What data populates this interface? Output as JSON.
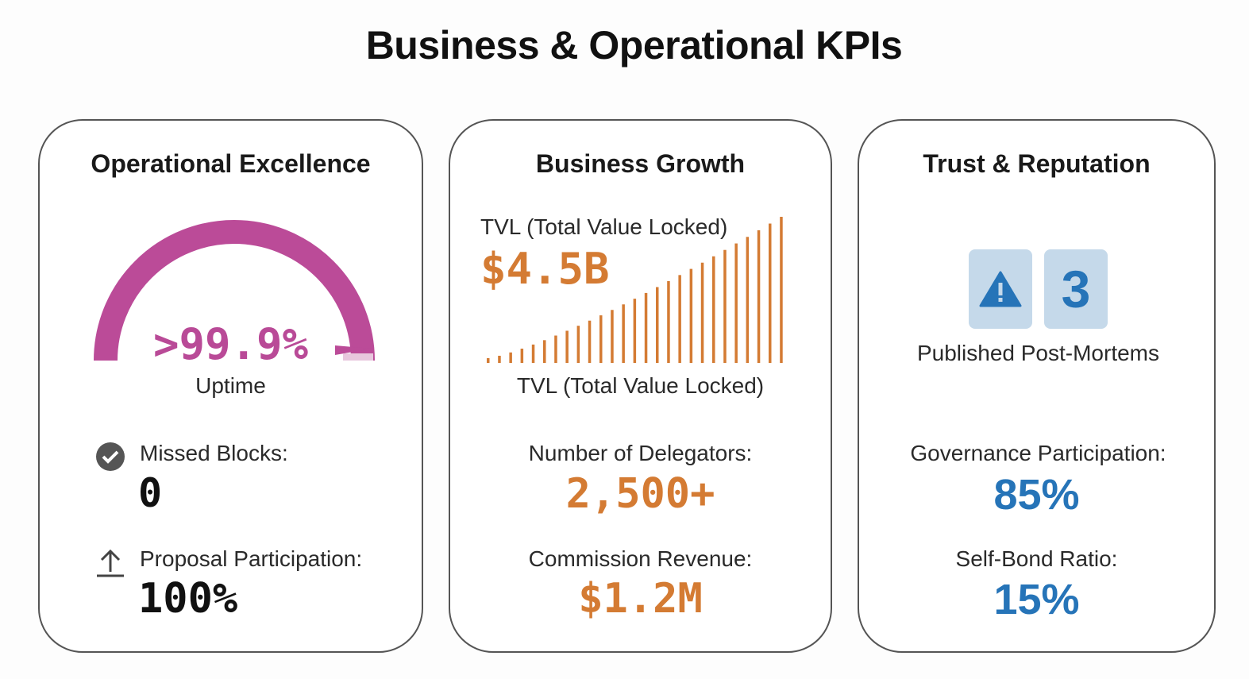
{
  "title": "Business & Operational KPIs",
  "colors": {
    "magenta": "#b94a97",
    "orange": "#d47b33",
    "blue": "#2674b8",
    "tile": "#c5d9ea"
  },
  "operational": {
    "heading": "Operational Excellence",
    "uptime_value": ">99.9%",
    "uptime_label": "Uptime",
    "uptime_gauge_fraction": 0.999,
    "missed_blocks_label": "Missed Blocks:",
    "missed_blocks_value": "0",
    "missed_blocks_icon": "check-circle-icon",
    "proposal_label": "Proposal Participation:",
    "proposal_value": "100%",
    "proposal_icon": "upload-arrow-icon"
  },
  "growth": {
    "heading": "Business Growth",
    "tvl_label_top": "TVL (Total Value Locked)",
    "tvl_value": "$4.5B",
    "tvl_label_bottom": "TVL (Total Value Locked)",
    "delegators_label": "Number of Delegators:",
    "delegators_value": "2,500+",
    "revenue_label": "Commission Revenue:",
    "revenue_value": "$1.2M"
  },
  "trust": {
    "heading": "Trust & Reputation",
    "postmortem_icon": "warning-triangle-icon",
    "postmortem_count": "3",
    "postmortem_label": "Published Post-Mortems",
    "governance_label": "Governance Participation:",
    "governance_value": "85%",
    "selfbond_label": "Self-Bond Ratio:",
    "selfbond_value": "15%"
  }
}
